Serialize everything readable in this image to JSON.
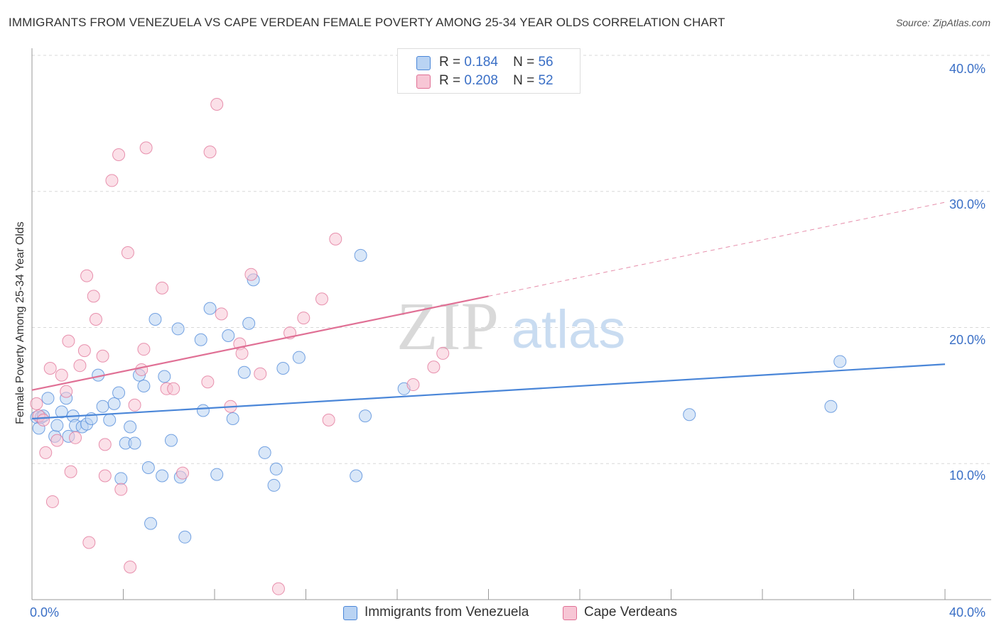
{
  "title": "IMMIGRANTS FROM VENEZUELA VS CAPE VERDEAN FEMALE POVERTY AMONG 25-34 YEAR OLDS CORRELATION CHART",
  "source": "Source: ZipAtlas.com",
  "watermark": {
    "zip": "ZIP",
    "atlas": "atlas"
  },
  "legend": {
    "rows": [
      {
        "r_label": "R =",
        "r_value": "0.184",
        "n_label": "N =",
        "n_value": "56",
        "color": "#a8c8f0"
      },
      {
        "r_label": "R =",
        "r_value": "0.208",
        "n_label": "N =",
        "n_value": "52",
        "color": "#f5b8cb"
      }
    ]
  },
  "chart_data": {
    "type": "scatter",
    "title": "IMMIGRANTS FROM VENEZUELA VS CAPE VERDEAN FEMALE POVERTY AMONG 25-34 YEAR OLDS CORRELATION CHART",
    "xlabel": "",
    "ylabel": "Female Poverty Among 25-34 Year Olds",
    "xlim": [
      0,
      40
    ],
    "ylim": [
      0,
      40
    ],
    "x_tick_labels": [
      "0.0%",
      "40.0%"
    ],
    "y_tick_labels": [
      "10.0%",
      "20.0%",
      "30.0%",
      "40.0%"
    ],
    "y_ticks": [
      10,
      20,
      30,
      40
    ],
    "grid": true,
    "legend_position": "top-center",
    "series": [
      {
        "name": "Immigrants from Venezuela",
        "color": "#4a86d8",
        "fill": "#b9d3f3",
        "trend": {
          "x0": 0,
          "y0": 13.3,
          "x1": 40,
          "y1": 17.3,
          "dashed_from": null
        },
        "points": [
          [
            0.2,
            13.4
          ],
          [
            0.3,
            12.6
          ],
          [
            0.4,
            13.4
          ],
          [
            0.5,
            13.5
          ],
          [
            0.7,
            14.8
          ],
          [
            1.0,
            12.0
          ],
          [
            1.1,
            12.8
          ],
          [
            1.3,
            13.8
          ],
          [
            1.5,
            14.8
          ],
          [
            1.6,
            12.0
          ],
          [
            1.8,
            13.5
          ],
          [
            1.9,
            12.8
          ],
          [
            2.2,
            12.7
          ],
          [
            2.4,
            12.9
          ],
          [
            2.6,
            13.3
          ],
          [
            2.9,
            16.5
          ],
          [
            3.1,
            14.2
          ],
          [
            3.4,
            13.2
          ],
          [
            3.6,
            14.4
          ],
          [
            3.8,
            15.2
          ],
          [
            3.9,
            8.9
          ],
          [
            4.1,
            11.5
          ],
          [
            4.3,
            12.7
          ],
          [
            4.5,
            11.5
          ],
          [
            4.7,
            16.5
          ],
          [
            4.9,
            15.7
          ],
          [
            5.1,
            9.7
          ],
          [
            5.2,
            5.6
          ],
          [
            5.4,
            20.6
          ],
          [
            5.7,
            9.1
          ],
          [
            5.8,
            16.4
          ],
          [
            6.1,
            11.7
          ],
          [
            6.4,
            19.9
          ],
          [
            6.5,
            9.0
          ],
          [
            6.7,
            4.6
          ],
          [
            7.4,
            19.1
          ],
          [
            7.5,
            13.9
          ],
          [
            7.8,
            21.4
          ],
          [
            8.1,
            9.2
          ],
          [
            8.6,
            19.4
          ],
          [
            8.8,
            13.3
          ],
          [
            9.3,
            16.7
          ],
          [
            9.5,
            20.3
          ],
          [
            9.7,
            23.5
          ],
          [
            10.2,
            10.8
          ],
          [
            10.6,
            8.4
          ],
          [
            10.7,
            9.6
          ],
          [
            11.0,
            17.0
          ],
          [
            11.7,
            17.8
          ],
          [
            14.2,
            9.1
          ],
          [
            14.4,
            25.3
          ],
          [
            14.6,
            13.5
          ],
          [
            16.3,
            15.5
          ],
          [
            28.8,
            13.6
          ],
          [
            35.0,
            14.2
          ],
          [
            35.4,
            17.5
          ]
        ]
      },
      {
        "name": "Cape Verdeans",
        "color": "#e07095",
        "fill": "#f7c6d5",
        "trend": {
          "x0": 0,
          "y0": 15.4,
          "x1": 40,
          "y1": 29.2,
          "dashed_from": 20.0
        },
        "points": [
          [
            0.2,
            14.4
          ],
          [
            0.3,
            13.5
          ],
          [
            0.5,
            13.2
          ],
          [
            0.6,
            10.8
          ],
          [
            0.8,
            17.0
          ],
          [
            0.9,
            7.2
          ],
          [
            1.1,
            11.7
          ],
          [
            1.3,
            16.5
          ],
          [
            1.5,
            15.3
          ],
          [
            1.6,
            19.0
          ],
          [
            1.7,
            9.4
          ],
          [
            1.9,
            11.9
          ],
          [
            2.1,
            17.2
          ],
          [
            2.3,
            18.3
          ],
          [
            2.4,
            23.8
          ],
          [
            2.5,
            4.2
          ],
          [
            2.7,
            22.3
          ],
          [
            2.8,
            20.6
          ],
          [
            3.1,
            17.9
          ],
          [
            3.2,
            9.1
          ],
          [
            3.2,
            11.4
          ],
          [
            3.5,
            30.8
          ],
          [
            3.8,
            32.7
          ],
          [
            3.9,
            8.1
          ],
          [
            4.2,
            25.5
          ],
          [
            4.3,
            2.4
          ],
          [
            4.5,
            14.3
          ],
          [
            4.8,
            16.9
          ],
          [
            4.9,
            18.4
          ],
          [
            5.0,
            33.2
          ],
          [
            5.7,
            22.9
          ],
          [
            5.9,
            15.5
          ],
          [
            6.2,
            15.5
          ],
          [
            6.6,
            9.3
          ],
          [
            7.7,
            16.0
          ],
          [
            7.8,
            32.9
          ],
          [
            8.1,
            36.4
          ],
          [
            8.3,
            21.0
          ],
          [
            8.7,
            14.2
          ],
          [
            9.1,
            18.8
          ],
          [
            9.2,
            18.1
          ],
          [
            9.6,
            23.9
          ],
          [
            10.0,
            16.6
          ],
          [
            10.8,
            0.8
          ],
          [
            11.3,
            19.6
          ],
          [
            11.9,
            20.7
          ],
          [
            12.7,
            22.1
          ],
          [
            13.3,
            26.5
          ],
          [
            16.7,
            15.8
          ],
          [
            17.6,
            17.1
          ],
          [
            18.0,
            18.1
          ],
          [
            13.0,
            13.2
          ]
        ]
      }
    ]
  }
}
